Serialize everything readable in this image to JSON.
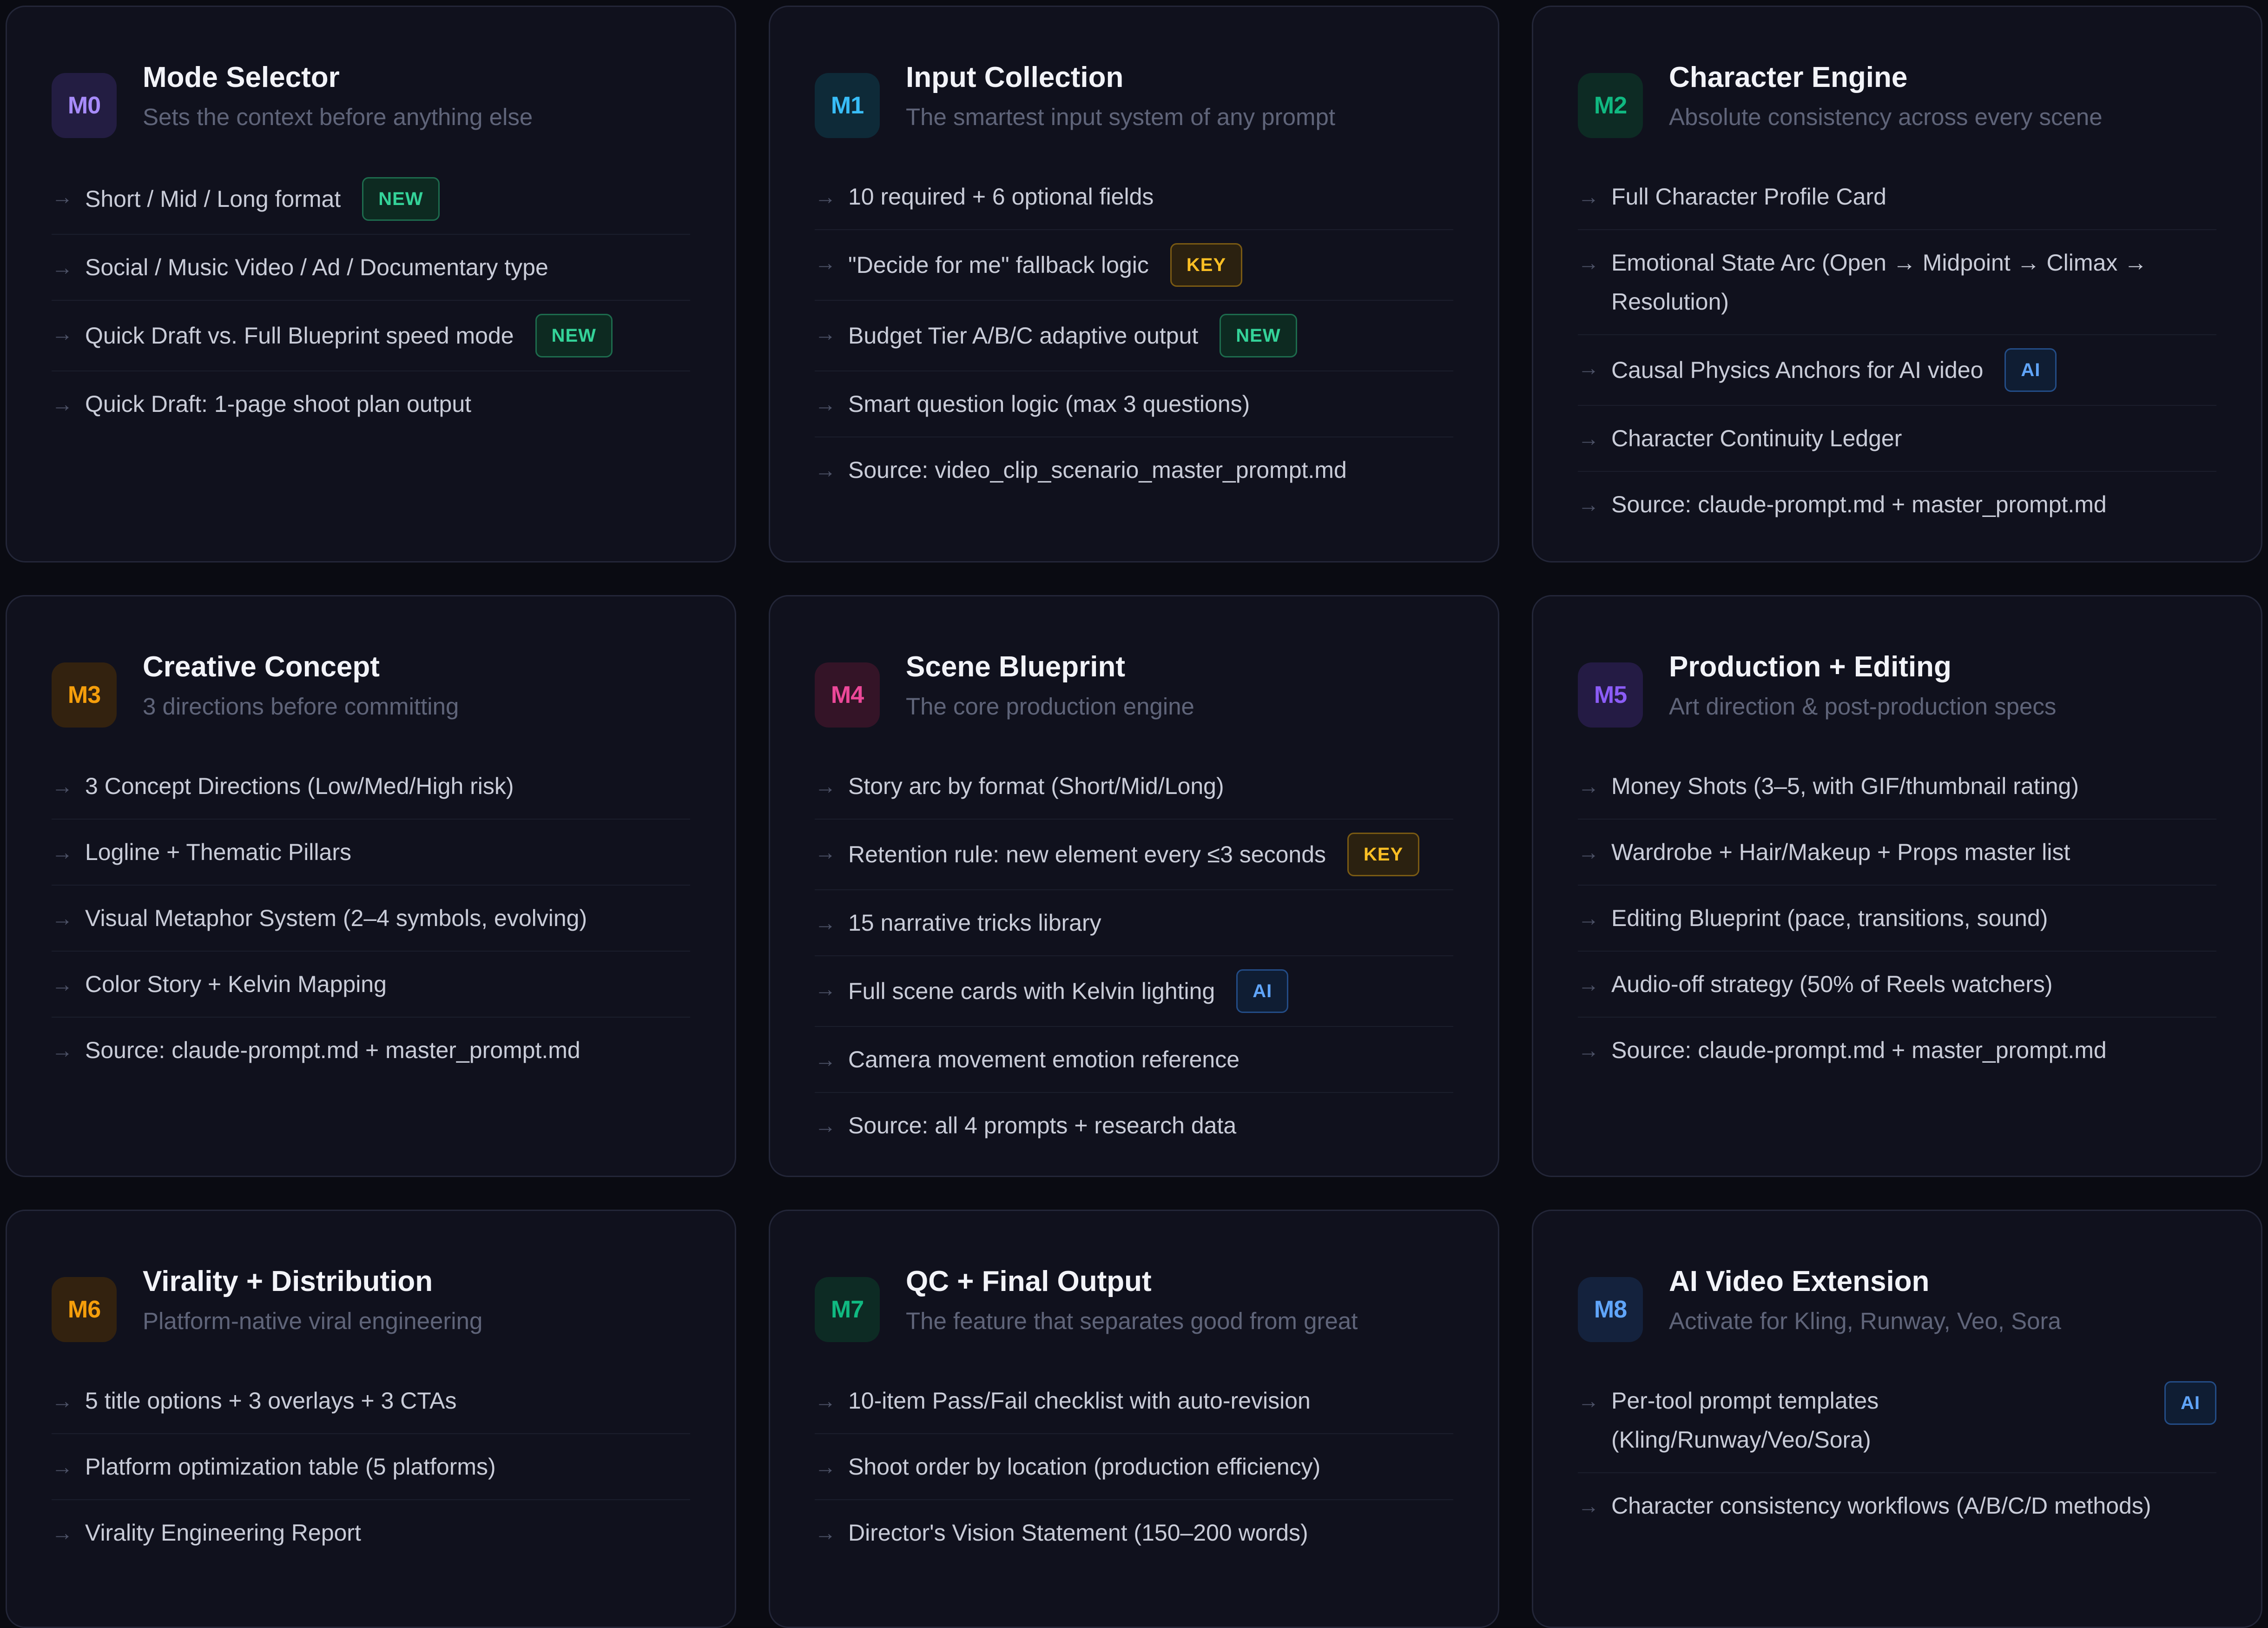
{
  "modules": [
    {
      "code": "M0",
      "title": "Mode Selector",
      "subtitle": "Sets the context before anything else",
      "badge_color": "#a78bfa",
      "badge_bg": "#231d42",
      "items": [
        {
          "text": "Short / Mid / Long format",
          "tag": "NEW",
          "tag_type": "new"
        },
        {
          "text": "Social / Music Video / Ad / Documentary type"
        },
        {
          "text": "Quick Draft vs. Full Blueprint speed mode",
          "tag": "NEW",
          "tag_type": "new"
        },
        {
          "text": "Quick Draft: 1-page shoot plan output"
        }
      ]
    },
    {
      "code": "M1",
      "title": "Input Collection",
      "subtitle": "The smartest input system of any prompt",
      "badge_color": "#38bdf8",
      "badge_bg": "#0e2a38",
      "items": [
        {
          "text": "10 required + 6 optional fields"
        },
        {
          "text": "\"Decide for me\" fallback logic",
          "tag": "KEY",
          "tag_type": "key"
        },
        {
          "text": "Budget Tier A/B/C adaptive output",
          "tag": "NEW",
          "tag_type": "new"
        },
        {
          "text": "Smart question logic (max 3 questions)"
        },
        {
          "text": "Source: video_clip_scenario_master_prompt.md"
        }
      ]
    },
    {
      "code": "M2",
      "title": "Character Engine",
      "subtitle": "Absolute consistency across every scene",
      "badge_color": "#10b981",
      "badge_bg": "#0d2b24",
      "items": [
        {
          "text": "Full Character Profile Card"
        },
        {
          "text": "Emotional State Arc (Open → Midpoint → Climax → Resolution)"
        },
        {
          "text": "Causal Physics Anchors for AI video",
          "tag": "AI",
          "tag_type": "ai"
        },
        {
          "text": "Character Continuity Ledger"
        },
        {
          "text": "Source: claude-prompt.md + master_prompt.md"
        }
      ]
    },
    {
      "code": "M3",
      "title": "Creative Concept",
      "subtitle": "3 directions before committing",
      "badge_color": "#f59e0b",
      "badge_bg": "#33220f",
      "items": [
        {
          "text": "3 Concept Directions (Low/Med/High risk)"
        },
        {
          "text": "Logline + Thematic Pillars"
        },
        {
          "text": "Visual Metaphor System (2–4 symbols, evolving)"
        },
        {
          "text": "Color Story + Kelvin Mapping"
        },
        {
          "text": "Source: claude-prompt.md + master_prompt.md"
        }
      ]
    },
    {
      "code": "M4",
      "title": "Scene Blueprint",
      "subtitle": "The core production engine",
      "badge_color": "#ec4899",
      "badge_bg": "#341427",
      "items": [
        {
          "text": "Story arc by format (Short/Mid/Long)"
        },
        {
          "text": "Retention rule: new element every ≤3 seconds",
          "tag": "KEY",
          "tag_type": "key"
        },
        {
          "text": "15 narrative tricks library"
        },
        {
          "text": "Full scene cards with Kelvin lighting",
          "tag": "AI",
          "tag_type": "ai"
        },
        {
          "text": "Camera movement emotion reference"
        },
        {
          "text": "Source: all 4 prompts + research data"
        }
      ]
    },
    {
      "code": "M5",
      "title": "Production + Editing",
      "subtitle": "Art direction & post-production specs",
      "badge_color": "#8b5cf6",
      "badge_bg": "#241b44",
      "items": [
        {
          "text": "Money Shots (3–5, with GIF/thumbnail rating)"
        },
        {
          "text": "Wardrobe + Hair/Makeup + Props master list"
        },
        {
          "text": "Editing Blueprint (pace, transitions, sound)"
        },
        {
          "text": "Audio-off strategy (50% of Reels watchers)"
        },
        {
          "text": "Source: claude-prompt.md + master_prompt.md"
        }
      ]
    },
    {
      "code": "M6",
      "title": "Virality + Distribution",
      "subtitle": "Platform-native viral engineering",
      "badge_color": "#f59e0b",
      "badge_bg": "#33220f",
      "items": [
        {
          "text": "5 title options + 3 overlays + 3 CTAs"
        },
        {
          "text": "Platform optimization table (5 platforms)"
        },
        {
          "text": "Virality Engineering Report"
        }
      ]
    },
    {
      "code": "M7",
      "title": "QC + Final Output",
      "subtitle": "The feature that separates good from great",
      "badge_color": "#10b981",
      "badge_bg": "#0d2b24",
      "items": [
        {
          "text": "10-item Pass/Fail checklist with auto-revision"
        },
        {
          "text": "Shoot order by location (production efficiency)"
        },
        {
          "text": "Director's Vision Statement (150–200 words)"
        }
      ]
    },
    {
      "code": "M8",
      "title": "AI Video Extension",
      "subtitle": "Activate for Kling, Runway, Veo, Sora",
      "badge_color": "#60a5fa",
      "badge_bg": "#14223d",
      "items": [
        {
          "text": "Per-tool prompt templates (Kling/Runway/Veo/Sora)",
          "tag": "AI",
          "tag_type": "ai",
          "tag_right": true
        },
        {
          "text": "Character consistency workflows (A/B/C/D methods)"
        }
      ]
    }
  ]
}
